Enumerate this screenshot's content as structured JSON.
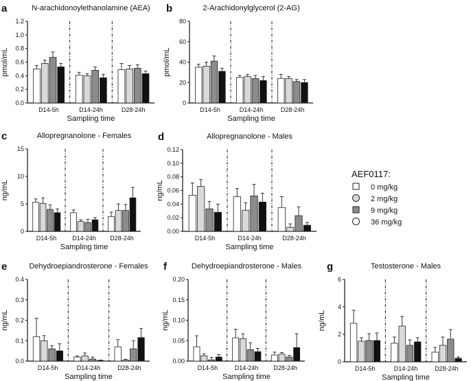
{
  "chart_data": [
    {
      "letter": "a",
      "type": "bar",
      "title": "N-arachidonoylethanolamine (AEA)",
      "ylabel": "pmol/mL",
      "xlabel": "Sampling time",
      "categories": [
        "D14-5h",
        "D14-24h",
        "D28-24h"
      ],
      "ylim": [
        0,
        1.2
      ],
      "yticks": [
        "0.0",
        "0.2",
        "0.4",
        "0.6",
        "0.8",
        "1.0",
        "1.2"
      ],
      "series": [
        {
          "name": "0 mg/kg",
          "values": [
            0.5,
            0.41,
            0.49
          ],
          "sem": [
            0.05,
            0.04,
            0.09
          ]
        },
        {
          "name": "2 mg/kg",
          "values": [
            0.58,
            0.4,
            0.5
          ],
          "sem": [
            0.05,
            0.03,
            0.05
          ]
        },
        {
          "name": "9 mg/kg",
          "values": [
            0.67,
            0.48,
            0.51
          ],
          "sem": [
            0.08,
            0.05,
            0.05
          ]
        },
        {
          "name": "36 mg/kg",
          "values": [
            0.53,
            0.37,
            0.43
          ],
          "sem": [
            0.05,
            0.05,
            0.04
          ]
        }
      ]
    },
    {
      "letter": "b",
      "type": "bar",
      "title": "2-Arachidonylglycerol (2-AG)",
      "ylabel": "pmol/mL",
      "xlabel": "Sampling time",
      "categories": [
        "D14-5h",
        "D14-24h",
        "D28-24h"
      ],
      "ylim": [
        0,
        80
      ],
      "yticks": [
        "0",
        "20",
        "40",
        "60",
        "80"
      ],
      "series": [
        {
          "name": "0 mg/kg",
          "values": [
            35,
            25,
            24
          ],
          "sem": [
            3,
            2,
            4
          ]
        },
        {
          "name": "2 mg/kg",
          "values": [
            36,
            26,
            24
          ],
          "sem": [
            4,
            2,
            2
          ]
        },
        {
          "name": "9 mg/kg",
          "values": [
            41,
            24,
            21
          ],
          "sem": [
            5,
            3,
            2
          ]
        },
        {
          "name": "36 mg/kg",
          "values": [
            31,
            22,
            20
          ],
          "sem": [
            3,
            4,
            3
          ]
        }
      ]
    },
    {
      "letter": "c",
      "type": "bar",
      "title": "Allopregnanolone - Females",
      "ylabel": "ng/mL",
      "xlabel": "Sampling time",
      "categories": [
        "D14-5h",
        "D14-24h",
        "D28-24h"
      ],
      "ylim": [
        0,
        15
      ],
      "yticks": [
        "0",
        "5",
        "10",
        "15"
      ],
      "series": [
        {
          "name": "0 mg/kg",
          "values": [
            5.3,
            3.4,
            2.7
          ],
          "sem": [
            0.6,
            0.5,
            0.8
          ]
        },
        {
          "name": "2 mg/kg",
          "values": [
            5.1,
            1.8,
            3.8
          ],
          "sem": [
            1.0,
            0.3,
            1.2
          ]
        },
        {
          "name": "9 mg/kg",
          "values": [
            4.0,
            1.6,
            3.8
          ],
          "sem": [
            0.8,
            0.6,
            1.1
          ]
        },
        {
          "name": "36 mg/kg",
          "values": [
            3.4,
            2.1,
            6.1
          ],
          "sem": [
            0.7,
            0.4,
            1.9
          ]
        }
      ]
    },
    {
      "letter": "d",
      "type": "bar",
      "title": "Allopregnanolone - Males",
      "ylabel": "ng/mL",
      "xlabel": "Sampling time",
      "categories": [
        "D14-5h",
        "D14-24h",
        "D28-24h"
      ],
      "ylim": [
        0,
        0.12
      ],
      "yticks": [
        "0.00",
        "0.02",
        "0.04",
        "0.06",
        "0.08",
        "0.10",
        "0.12"
      ],
      "series": [
        {
          "name": "0 mg/kg",
          "values": [
            0.053,
            0.051,
            0.035
          ],
          "sem": [
            0.018,
            0.012,
            0.016
          ]
        },
        {
          "name": "2 mg/kg",
          "values": [
            0.066,
            0.031,
            0.006
          ],
          "sem": [
            0.01,
            0.011,
            0.005
          ]
        },
        {
          "name": "9 mg/kg",
          "values": [
            0.033,
            0.052,
            0.023
          ],
          "sem": [
            0.011,
            0.017,
            0.013
          ]
        },
        {
          "name": "36 mg/kg",
          "values": [
            0.028,
            0.043,
            0.009
          ],
          "sem": [
            0.012,
            0.013,
            0.004
          ]
        }
      ]
    },
    {
      "letter": "e",
      "type": "bar",
      "title": "Dehydroepiandrosterone - Females",
      "ylabel": "ng/mL",
      "xlabel": "Sampling time",
      "categories": [
        "D14-5h",
        "D14-24h",
        "D28-24h"
      ],
      "ylim": [
        0,
        0.4
      ],
      "yticks": [
        "0.0",
        "0.1",
        "0.2",
        "0.3",
        "0.4"
      ],
      "series": [
        {
          "name": "0 mg/kg",
          "values": [
            0.12,
            0.02,
            0.07
          ],
          "sem": [
            0.09,
            0.005,
            0.035
          ]
        },
        {
          "name": "2 mg/kg",
          "values": [
            0.1,
            0.025,
            0.005
          ],
          "sem": [
            0.025,
            0.015,
            0.004
          ]
        },
        {
          "name": "9 mg/kg",
          "values": [
            0.06,
            0.01,
            0.06
          ],
          "sem": [
            0.015,
            0.01,
            0.04
          ]
        },
        {
          "name": "36 mg/kg",
          "values": [
            0.05,
            0.003,
            0.115
          ],
          "sem": [
            0.035,
            0.002,
            0.045
          ]
        }
      ]
    },
    {
      "letter": "f",
      "type": "bar",
      "title": "Dehydroepiandrosterone - Males",
      "ylabel": "ng/mL",
      "xlabel": "Sampling time",
      "categories": [
        "D14-5h",
        "D14-24h",
        "D28-24h"
      ],
      "ylim": [
        0,
        0.2
      ],
      "yticks": [
        "0.00",
        "0.05",
        "0.10",
        "0.15",
        "0.20"
      ],
      "series": [
        {
          "name": "0 mg/kg",
          "values": [
            0.035,
            0.057,
            0.015
          ],
          "sem": [
            0.027,
            0.021,
            0.007
          ]
        },
        {
          "name": "2 mg/kg",
          "values": [
            0.013,
            0.055,
            0.017
          ],
          "sem": [
            0.005,
            0.012,
            0.004
          ]
        },
        {
          "name": "9 mg/kg",
          "values": [
            0.003,
            0.028,
            0.01
          ],
          "sem": [
            0.006,
            0.017,
            0.004
          ]
        },
        {
          "name": "36 mg/kg",
          "values": [
            0.01,
            0.023,
            0.033
          ],
          "sem": [
            0.006,
            0.008,
            0.034
          ]
        }
      ]
    },
    {
      "letter": "g",
      "type": "bar",
      "title": "Testosterone - Males",
      "ylabel": "ng/mL",
      "xlabel": "Sampling time",
      "categories": [
        "D14-5h",
        "D14-24h",
        "D28-24h"
      ],
      "ylim": [
        0,
        6
      ],
      "yticks": [
        "0",
        "2",
        "4",
        "6"
      ],
      "series": [
        {
          "name": "0 mg/kg",
          "values": [
            2.8,
            1.35,
            0.7
          ],
          "sem": [
            0.95,
            0.45,
            0.35
          ]
        },
        {
          "name": "2 mg/kg",
          "values": [
            1.5,
            2.6,
            1.2
          ],
          "sem": [
            0.25,
            0.7,
            0.6
          ]
        },
        {
          "name": "9 mg/kg",
          "values": [
            1.55,
            1.2,
            1.65
          ],
          "sem": [
            0.5,
            0.4,
            0.7
          ]
        },
        {
          "name": "36 mg/kg",
          "values": [
            1.55,
            1.45,
            0.25
          ],
          "sem": [
            0.55,
            0.3,
            0.1
          ]
        }
      ]
    }
  ],
  "legend": {
    "title": "AEF0117:",
    "items": [
      "0 mg/kg",
      "2 mg/kg",
      "9 mg/kg",
      "36 mg/kg"
    ]
  },
  "colors": {
    "0 mg/kg": "#ffffff",
    "2 mg/kg": "#d9d9d9",
    "9 mg/kg": "#8c8c8c",
    "36 mg/kg": "#111111"
  }
}
